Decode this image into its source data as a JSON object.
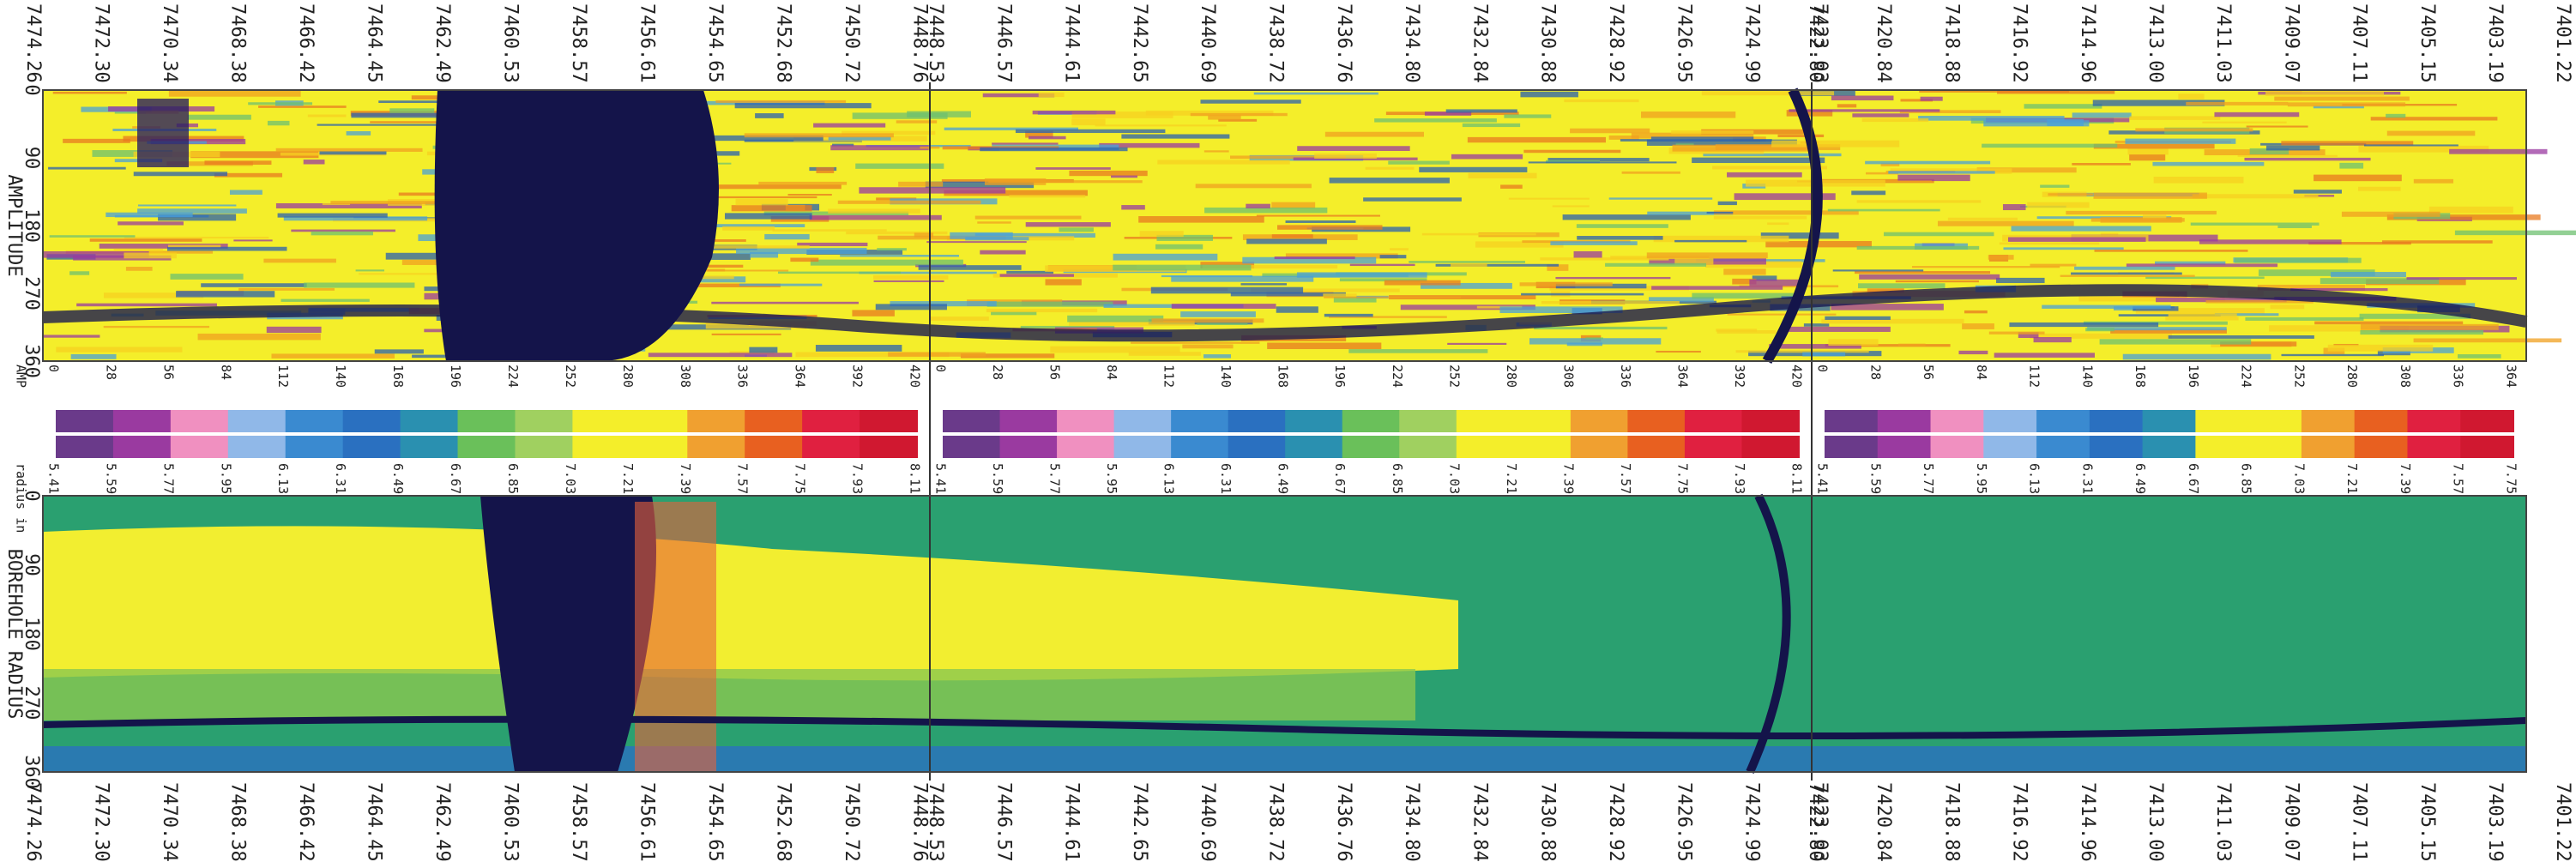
{
  "depth_labels_top": [
    "7474.26",
    "7472.30",
    "7470.34",
    "7468.38",
    "7466.42",
    "7464.45",
    "7462.49",
    "7460.53",
    "7458.57",
    "7456.61",
    "7454.65",
    "7452.68",
    "7450.72",
    "7448.76",
    "7448.53",
    "7446.57",
    "7444.61",
    "7442.65",
    "7440.69",
    "7438.72",
    "7436.76",
    "7434.80",
    "7432.84",
    "7430.88",
    "7428.92",
    "7426.95",
    "7424.99",
    "7423.03",
    "7422.80",
    "7420.84",
    "7418.88",
    "7416.92",
    "7414.96",
    "7413.00",
    "7411.03",
    "7409.07",
    "7407.11",
    "7405.15",
    "7403.19",
    "7401.22"
  ],
  "depth_labels_bottom": [
    "7474.26",
    "7472.30",
    "7470.34",
    "7468.38",
    "7466.42",
    "7464.45",
    "7462.49",
    "7460.53",
    "7458.57",
    "7456.61",
    "7454.65",
    "7452.68",
    "7450.72",
    "7448.76",
    "7448.53",
    "7446.57",
    "7444.61",
    "7442.65",
    "7440.69",
    "7438.72",
    "7436.76",
    "7434.80",
    "7432.84",
    "7430.88",
    "7428.92",
    "7426.95",
    "7424.99",
    "7423.03",
    "7422.80",
    "7420.84",
    "7418.88",
    "7416.92",
    "7414.96",
    "7413.00",
    "7411.03",
    "7409.07",
    "7407.11",
    "7405.15",
    "7403.19",
    "7401.22"
  ],
  "amplitude_track": {
    "title": "AMPLITUDE",
    "azimuth_ticks": [
      "0",
      "90",
      "180",
      "270",
      "360"
    ]
  },
  "radius_track": {
    "title": "BOREHOLE RADIUS",
    "azimuth_ticks": [
      "0",
      "90",
      "180",
      "270",
      "360"
    ]
  },
  "amp_scale": {
    "title": "AMP",
    "sections": [
      [
        "0",
        "28",
        "56",
        "84",
        "112",
        "140",
        "168",
        "196",
        "224",
        "252",
        "280",
        "308",
        "336",
        "364",
        "392",
        "420"
      ],
      [
        "0",
        "28",
        "56",
        "84",
        "112",
        "140",
        "168",
        "196",
        "224",
        "252",
        "280",
        "308",
        "336",
        "364",
        "392",
        "420"
      ],
      [
        "0",
        "28",
        "56",
        "84",
        "112",
        "140",
        "168",
        "196",
        "224",
        "252",
        "280",
        "308",
        "336",
        "364"
      ]
    ]
  },
  "radius_scale": {
    "title": "radius in",
    "sections": [
      [
        "5.41",
        "5.59",
        "5.77",
        "5.95",
        "6.13",
        "6.31",
        "6.49",
        "6.67",
        "6.85",
        "7.03",
        "7.21",
        "7.39",
        "7.57",
        "7.75",
        "7.93",
        "8.11"
      ],
      [
        "5.41",
        "5.59",
        "5.77",
        "5.95",
        "6.13",
        "6.31",
        "6.49",
        "6.67",
        "6.85",
        "7.03",
        "7.21",
        "7.39",
        "7.57",
        "7.75",
        "7.93",
        "8.11"
      ],
      [
        "5.41",
        "5.59",
        "5.77",
        "5.95",
        "6.13",
        "6.31",
        "6.49",
        "6.67",
        "6.85",
        "7.03",
        "7.21",
        "7.39",
        "7.57",
        "7.75"
      ]
    ]
  }
}
